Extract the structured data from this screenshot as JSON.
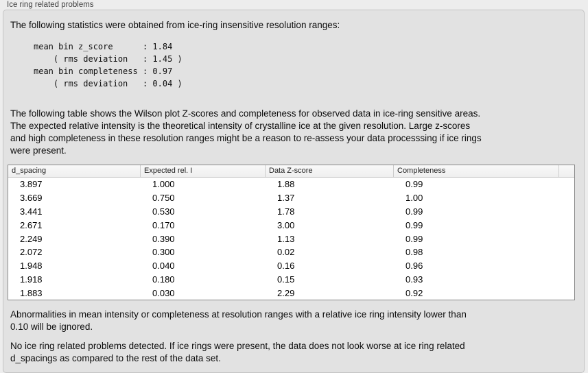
{
  "section": {
    "title": "Ice ring related problems"
  },
  "intro": "The following statistics were obtained from ice-ring insensitive resolution ranges:",
  "stats": {
    "lines": [
      "mean bin z_score      : 1.84",
      "    ( rms deviation   : 1.45 )",
      "mean bin completeness : 0.97",
      "    ( rms deviation   : 0.04 )"
    ]
  },
  "description": {
    "lines": [
      "The following table shows the Wilson plot Z-scores and completeness for observed data in ice-ring sensitive areas.",
      "The expected relative intensity is the theoretical intensity of crystalline ice at the given resolution. Large z-scores",
      "and high completeness in these resolution ranges might be a reason to re-assess your data processsing if ice rings",
      "were present."
    ]
  },
  "table": {
    "columns": [
      "d_spacing",
      "Expected rel. I",
      "Data Z-score",
      "Completeness"
    ],
    "rows": [
      [
        "3.897",
        "1.000",
        "1.88",
        "0.99"
      ],
      [
        "3.669",
        "0.750",
        "1.37",
        "1.00"
      ],
      [
        "3.441",
        "0.530",
        "1.78",
        "0.99"
      ],
      [
        "2.671",
        "0.170",
        "3.00",
        "0.99"
      ],
      [
        "2.249",
        "0.390",
        "1.13",
        "0.99"
      ],
      [
        "2.072",
        "0.300",
        "0.02",
        "0.98"
      ],
      [
        "1.948",
        "0.040",
        "0.16",
        "0.96"
      ],
      [
        "1.918",
        "0.180",
        "0.15",
        "0.93"
      ],
      [
        "1.883",
        "0.030",
        "2.29",
        "0.92"
      ]
    ]
  },
  "note": {
    "lines": [
      "Abnormalities in mean intensity or completeness at resolution ranges with a relative ice ring intensity lower than",
      "0.10 will be ignored."
    ]
  },
  "conclusion": {
    "lines": [
      "No ice ring related problems detected. If ice rings were present, the data does not look worse at ice ring related",
      "d_spacings as compared to the rest of the data set."
    ]
  },
  "colors": {
    "window_bg": "#ededed",
    "panel_bg": "#e2e2e2",
    "panel_border": "#c3c3c3",
    "table_border": "#878787",
    "table_header_bg": "#f4f4f4",
    "text": "#0d0d0d"
  }
}
